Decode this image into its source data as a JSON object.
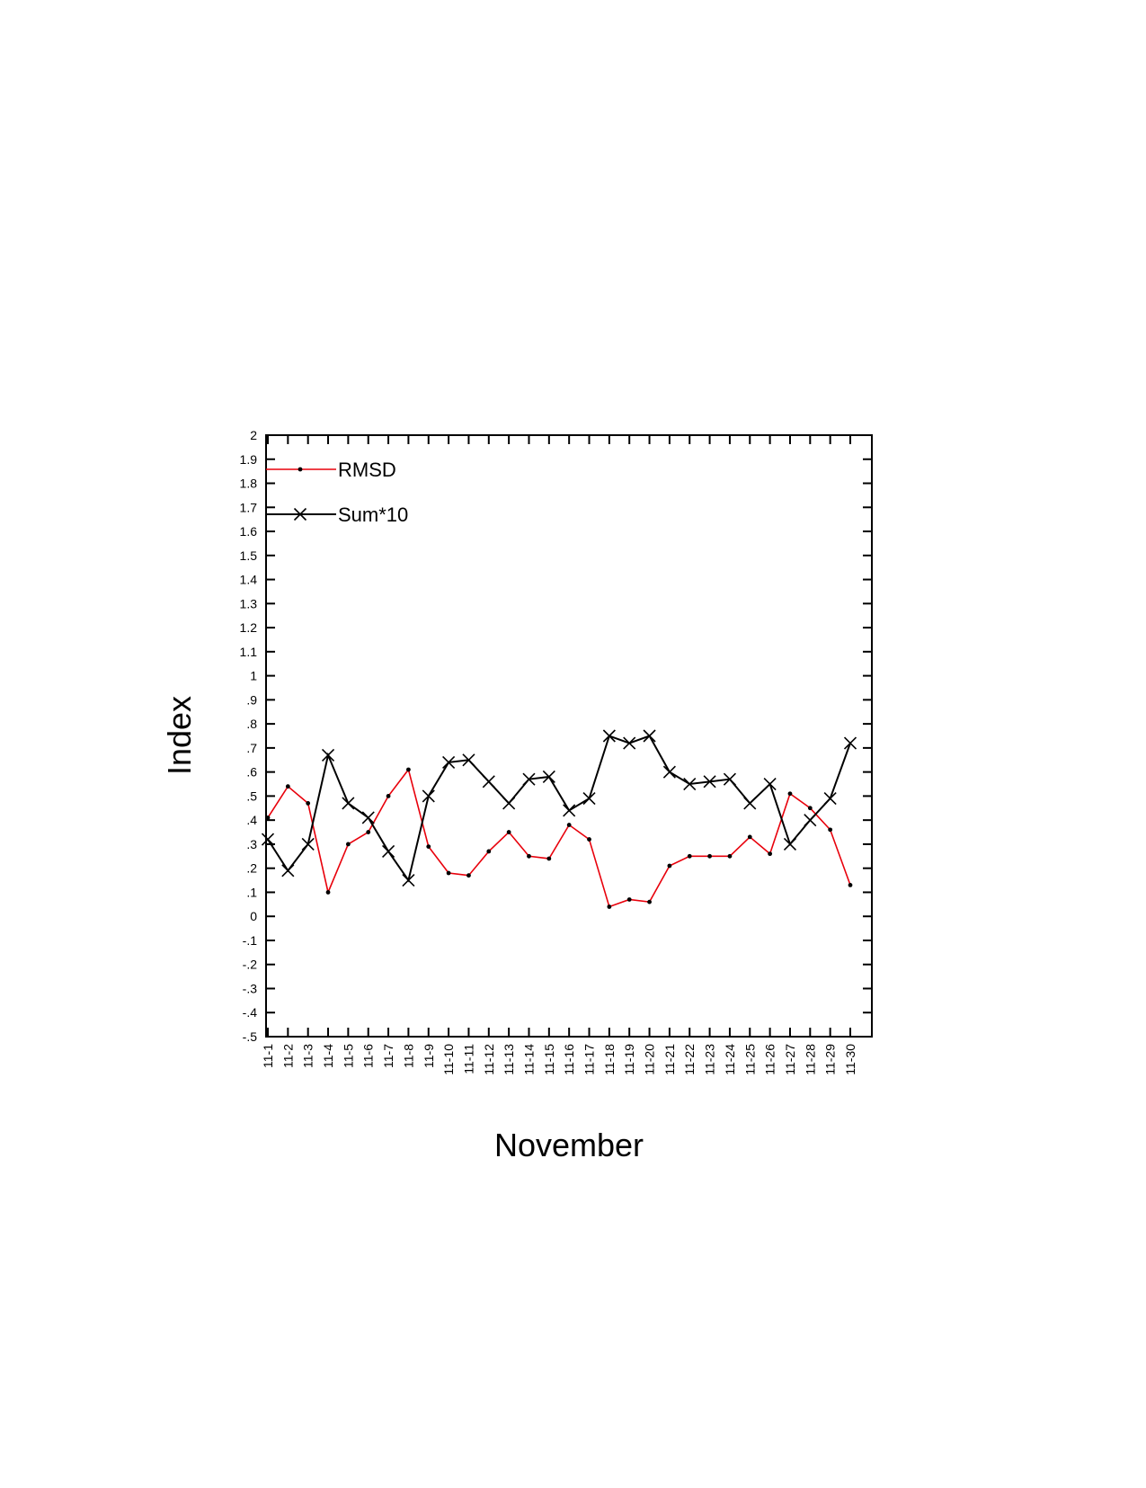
{
  "chart_data": {
    "type": "line",
    "xlabel": "November",
    "ylabel": "Index",
    "ylim": [
      -0.5,
      2
    ],
    "yticks": [
      -0.5,
      -0.4,
      -0.3,
      -0.2,
      -0.1,
      0,
      0.1,
      0.2,
      0.3,
      0.4,
      0.5,
      0.6,
      0.7,
      0.8,
      0.9,
      1,
      1.1,
      1.2,
      1.3,
      1.4,
      1.5,
      1.6,
      1.7,
      1.8,
      1.9,
      2
    ],
    "ytick_labels": [
      "-.5",
      "-.4",
      "-.3",
      "-.2",
      "-.1",
      "0",
      ".1",
      ".2",
      ".3",
      ".4",
      ".5",
      ".6",
      ".7",
      ".8",
      ".9",
      "1",
      "1.1",
      "1.2",
      "1.3",
      "1.4",
      "1.5",
      "1.6",
      "1.7",
      "1.8",
      "1.9",
      "2"
    ],
    "categories": [
      "11-1",
      "11-2",
      "11-3",
      "11-4",
      "11-5",
      "11-6",
      "11-7",
      "11-8",
      "11-9",
      "11-10",
      "11-11",
      "11-12",
      "11-13",
      "11-14",
      "11-15",
      "11-16",
      "11-17",
      "11-18",
      "11-19",
      "11-20",
      "11-21",
      "11-22",
      "11-23",
      "11-24",
      "11-25",
      "11-26",
      "11-27",
      "11-28",
      "11-29",
      "11-30"
    ],
    "grid": false,
    "legend_position": "top-left",
    "series": [
      {
        "name": "RMSD",
        "color": "#e8000b",
        "marker": "dot",
        "values": [
          0.41,
          0.54,
          0.47,
          0.1,
          0.3,
          0.35,
          0.5,
          0.61,
          0.29,
          0.18,
          0.17,
          0.27,
          0.35,
          0.25,
          0.24,
          0.38,
          0.32,
          0.04,
          0.07,
          0.06,
          0.21,
          0.25,
          0.25,
          0.25,
          0.33,
          0.26,
          0.51,
          0.45,
          0.36,
          0.13
        ]
      },
      {
        "name": "Sum*10",
        "color": "#000000",
        "marker": "x",
        "values": [
          0.32,
          0.19,
          0.3,
          0.67,
          0.47,
          0.41,
          0.27,
          0.15,
          0.5,
          0.64,
          0.65,
          0.56,
          0.47,
          0.57,
          0.58,
          0.44,
          0.49,
          0.75,
          0.72,
          0.75,
          0.6,
          0.55,
          0.56,
          0.57,
          0.47,
          0.55,
          0.3,
          0.4,
          0.49,
          0.72
        ]
      }
    ]
  }
}
